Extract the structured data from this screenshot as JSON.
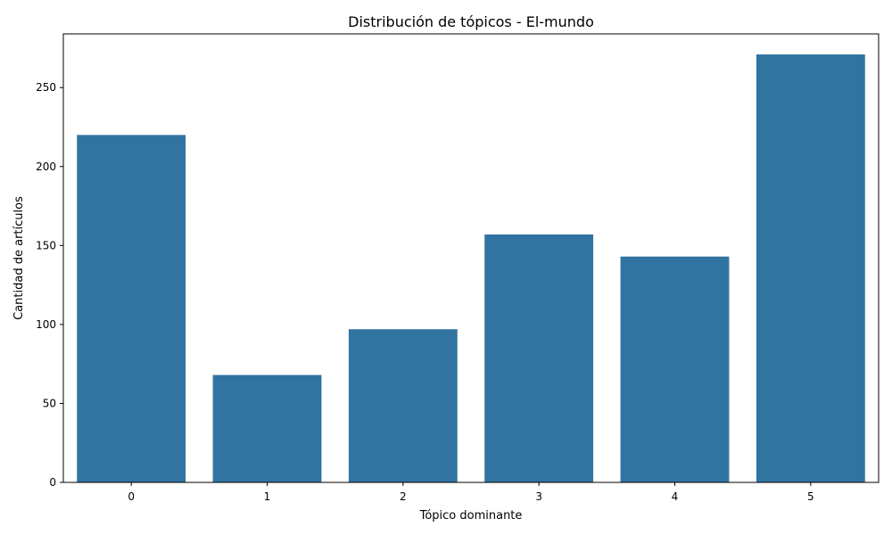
{
  "chart_data": {
    "type": "bar",
    "title": "Distribución de tópicos - El-mundo",
    "xlabel": "Tópico dominante",
    "ylabel": "Cantidad de artículos",
    "categories": [
      "0",
      "1",
      "2",
      "3",
      "4",
      "5"
    ],
    "values": [
      220,
      68,
      97,
      157,
      143,
      271
    ],
    "ylim": [
      0,
      284
    ],
    "yticks": [
      0,
      50,
      100,
      150,
      200,
      250
    ],
    "bar_color": "#3274a1",
    "grid": false
  }
}
